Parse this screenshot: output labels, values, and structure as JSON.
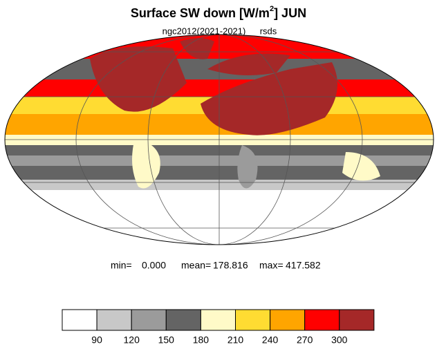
{
  "header": {
    "title": "Surface SW down [W/m",
    "title_sup": "2",
    "title_end": "]  JUN",
    "subtitle": "ngc2012(2021-2021)",
    "variable": "rsds"
  },
  "stats": {
    "min_label": "min=",
    "min": "0.000",
    "mean_label": "mean=",
    "mean": "178.816",
    "max_label": "max=",
    "max": "417.582"
  },
  "colorbar": {
    "levels": [
      90,
      120,
      150,
      180,
      210,
      240,
      270,
      300
    ],
    "colors": [
      "#ffffff",
      "#c8c8c8",
      "#9b9b9b",
      "#646464",
      "#fffac8",
      "#ffdc32",
      "#ffa500",
      "#ff0000",
      "#a52828"
    ]
  }
}
